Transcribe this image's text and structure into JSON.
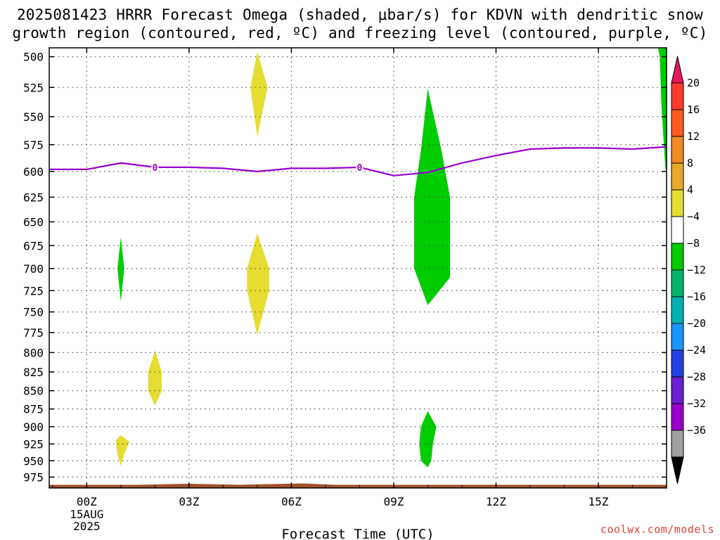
{
  "title": {
    "line1": "2025081423 HRRR Forecast Omega (shaded, μbar/s) for KDVN with dendritic snow",
    "line2": "growth region (contoured, red, ºC) and freezing level (contoured, purple, ºC)"
  },
  "watermark": "coolwx.com/models",
  "chart_data": {
    "type": "heatmap",
    "xlabel": "Forecast Time (UTC)",
    "ylabel": "",
    "x_range_hours": [
      -1.1,
      17.0
    ],
    "y_range_hpa": [
      493,
      992
    ],
    "y_scale": "log-pressure",
    "grid": true,
    "x_ticks": [
      {
        "hour": 0,
        "label": "00Z"
      },
      {
        "hour": 3,
        "label": "03Z"
      },
      {
        "hour": 6,
        "label": "06Z"
      },
      {
        "hour": 9,
        "label": "09Z"
      },
      {
        "hour": 12,
        "label": "12Z"
      },
      {
        "hour": 15,
        "label": "15Z"
      }
    ],
    "x_date_label": [
      "15AUG",
      "2025"
    ],
    "y_ticks": [
      500,
      525,
      550,
      575,
      600,
      625,
      650,
      675,
      700,
      725,
      750,
      775,
      800,
      825,
      850,
      875,
      900,
      925,
      950,
      975
    ],
    "freezing_level": {
      "color": "#9900cc",
      "label": "0",
      "label_hours": [
        2.0,
        8.0
      ],
      "points": [
        [
          -1.1,
          598
        ],
        [
          0,
          598
        ],
        [
          1,
          592
        ],
        [
          2,
          596
        ],
        [
          3,
          596
        ],
        [
          4,
          597
        ],
        [
          5,
          600
        ],
        [
          6,
          597
        ],
        [
          7,
          597
        ],
        [
          8,
          596
        ],
        [
          9,
          604
        ],
        [
          10,
          601
        ],
        [
          11,
          592
        ],
        [
          12,
          585
        ],
        [
          13,
          579
        ],
        [
          14,
          578
        ],
        [
          15,
          578
        ],
        [
          16,
          579
        ],
        [
          17,
          577
        ]
      ]
    },
    "omega_features": [
      {
        "value_color": "#e6dc32",
        "class": "4 to 8",
        "points": [
          [
            5.0,
            496
          ],
          [
            5.3,
            525
          ],
          [
            5.0,
            568
          ],
          [
            4.8,
            525
          ]
        ]
      },
      {
        "value_color": "#e6dc32",
        "class": "4 to 8",
        "points": [
          [
            5.0,
            662
          ],
          [
            5.35,
            700
          ],
          [
            5.35,
            725
          ],
          [
            5.0,
            778
          ],
          [
            4.7,
            725
          ],
          [
            4.7,
            700
          ]
        ]
      },
      {
        "value_color": "#e6dc32",
        "class": "4 to 8",
        "points": [
          [
            2.0,
            797
          ],
          [
            2.2,
            825
          ],
          [
            2.2,
            850
          ],
          [
            2.0,
            870
          ],
          [
            1.8,
            850
          ],
          [
            1.8,
            825
          ]
        ]
      },
      {
        "value_color": "#e6dc32",
        "class": "4 to 8",
        "points": [
          [
            1.0,
            912
          ],
          [
            1.25,
            922
          ],
          [
            1.1,
            940
          ],
          [
            1.0,
            958
          ],
          [
            0.9,
            940
          ],
          [
            0.85,
            920
          ]
        ]
      },
      {
        "value_color": "#00cc00",
        "class": "-8 to -4",
        "points": [
          [
            1.0,
            666
          ],
          [
            1.1,
            700
          ],
          [
            1.0,
            738
          ],
          [
            0.9,
            700
          ]
        ]
      },
      {
        "value_color": "#00cc00",
        "class": "-8 to -4",
        "points": [
          [
            10.0,
            526
          ],
          [
            10.4,
            580
          ],
          [
            10.65,
            625
          ],
          [
            10.65,
            710
          ],
          [
            10.0,
            742
          ],
          [
            9.6,
            700
          ],
          [
            9.6,
            625
          ],
          [
            9.8,
            580
          ]
        ]
      },
      {
        "value_color": "#00cc00",
        "class": "-8 to -4",
        "points": [
          [
            10.0,
            878
          ],
          [
            10.25,
            900
          ],
          [
            10.15,
            925
          ],
          [
            10.1,
            950
          ],
          [
            10.0,
            960
          ],
          [
            9.8,
            950
          ],
          [
            9.75,
            925
          ],
          [
            9.8,
            900
          ]
        ]
      },
      {
        "value_color": "#00cc00",
        "class": "-8 to -4",
        "points": [
          [
            16.75,
            493
          ],
          [
            17.0,
            493
          ],
          [
            17.0,
            608
          ],
          [
            16.95,
            590
          ],
          [
            16.85,
            540
          ],
          [
            16.8,
            500
          ]
        ]
      }
    ],
    "terrain": {
      "color": "#a0522d",
      "surface_hpa": 987
    },
    "colorbar": {
      "labels": [
        "20",
        "16",
        "12",
        "8",
        "4",
        "−4",
        "−8",
        "−12",
        "−16",
        "−20",
        "−24",
        "−28",
        "−32",
        "−36"
      ],
      "colors": [
        "#e8175d",
        "#ff3b2f",
        "#ff5a1f",
        "#f08a24",
        "#e8a92a",
        "#e6dc32",
        "#ffffff",
        "#00cc00",
        "#00b36b",
        "#00b3b3",
        "#1a94ff",
        "#2040e0",
        "#6a1fd0",
        "#9900cc",
        "#a0a0a0",
        "#000000"
      ]
    }
  }
}
